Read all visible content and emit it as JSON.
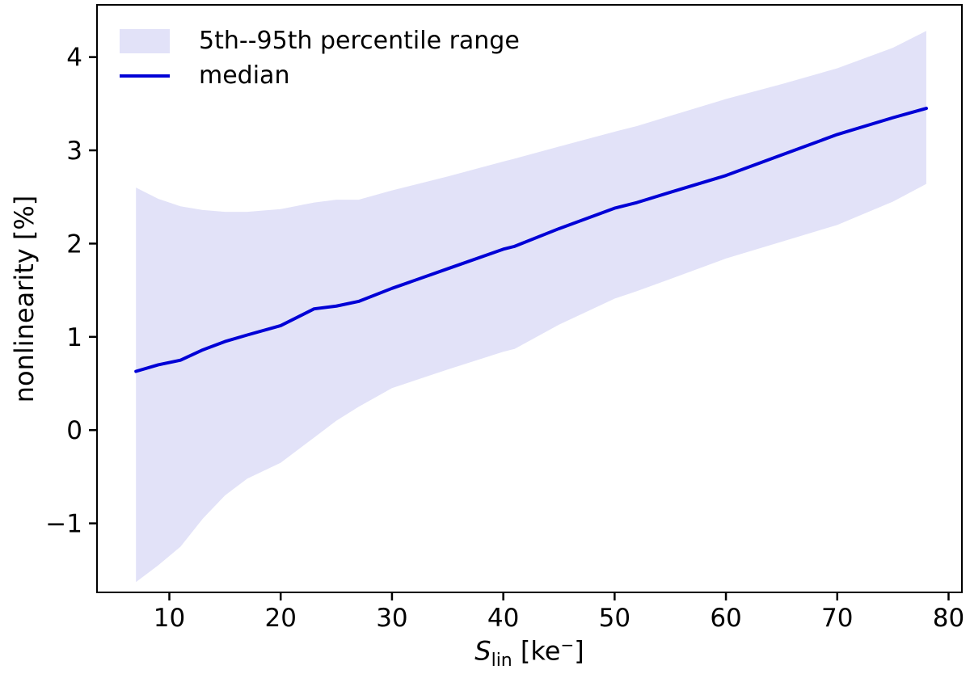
{
  "figure": {
    "background": "#ffffff"
  },
  "chart_data": {
    "type": "line",
    "title": "",
    "xlabel": "S_lin [ke−]",
    "xlabel_parts": {
      "variable": "S",
      "variable_sub": "lin",
      "unit_open": "[ke",
      "unit_sup": "−",
      "unit_close": "]"
    },
    "ylabel": "nonlinearity [%]",
    "xlim": [
      3.5,
      81.2
    ],
    "ylim": [
      -1.74,
      4.56
    ],
    "x_ticks": [
      10,
      20,
      30,
      40,
      50,
      60,
      70,
      80
    ],
    "y_ticks": [
      -1,
      0,
      1,
      2,
      3,
      4
    ],
    "grid": false,
    "colors": {
      "median_line": "#0000d6",
      "band_fill": "#e2e2f8",
      "axes": "#000000"
    },
    "legend": {
      "position": "upper-left",
      "entries": [
        {
          "label": "5th--95th percentile range",
          "marker": "patch",
          "color": "#e2e2f8"
        },
        {
          "label": "median",
          "marker": "line",
          "color": "#0000d6"
        }
      ]
    },
    "x": [
      7,
      9,
      11,
      13,
      15,
      17,
      20,
      23,
      25,
      27,
      30,
      35,
      40,
      41,
      45,
      50,
      52,
      55,
      60,
      65,
      70,
      75,
      78
    ],
    "series": [
      {
        "name": "median",
        "type": "line",
        "color": "#0000d6",
        "values": [
          0.63,
          0.7,
          0.75,
          0.86,
          0.95,
          1.02,
          1.12,
          1.3,
          1.33,
          1.38,
          1.52,
          1.73,
          1.94,
          1.97,
          2.16,
          2.38,
          2.44,
          2.55,
          2.73,
          2.95,
          3.17,
          3.35,
          3.45
        ]
      },
      {
        "name": "95th percentile (band upper)",
        "type": "band-upper",
        "color": "#e2e2f8",
        "values": [
          2.6,
          2.48,
          2.4,
          2.36,
          2.34,
          2.34,
          2.37,
          2.44,
          2.47,
          2.47,
          2.57,
          2.72,
          2.88,
          2.91,
          3.04,
          3.2,
          3.26,
          3.37,
          3.55,
          3.71,
          3.88,
          4.1,
          4.28
        ]
      },
      {
        "name": "5th percentile (band lower)",
        "type": "band-lower",
        "color": "#e2e2f8",
        "values": [
          -1.63,
          -1.45,
          -1.25,
          -0.95,
          -0.7,
          -0.52,
          -0.35,
          -0.08,
          0.1,
          0.25,
          0.45,
          0.65,
          0.84,
          0.87,
          1.13,
          1.41,
          1.49,
          1.62,
          1.84,
          2.02,
          2.2,
          2.45,
          2.64
        ]
      }
    ]
  }
}
